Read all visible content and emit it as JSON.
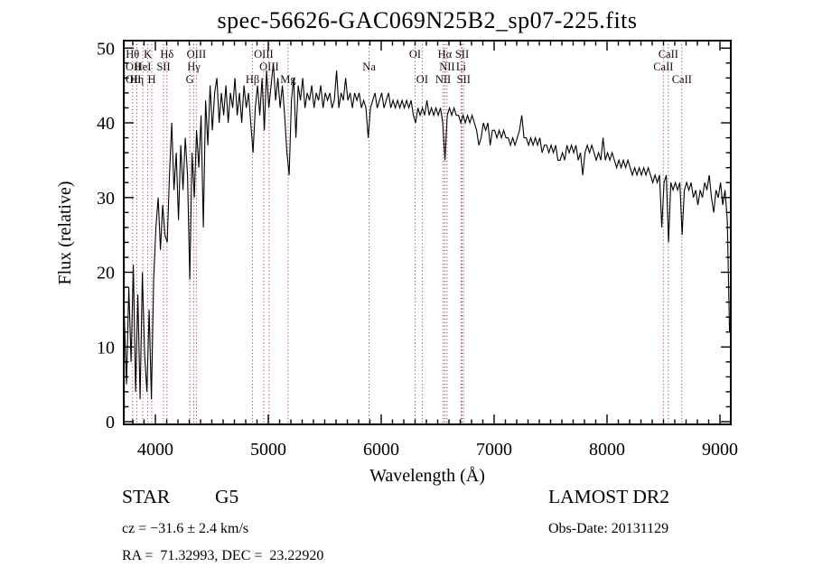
{
  "title": "spec-56626-GAC069N25B2_sp07-225.fits",
  "annotations": {
    "object_type": "STAR",
    "subclass": "G5",
    "cz_line": "cz = −31.6 ± 2.4 km/s",
    "radec_line": "RA =  71.32993, DEC =  23.22920",
    "survey": "LAMOST DR2",
    "obs_date_line": "Obs-Date: 20131129"
  },
  "chart_data": {
    "type": "line",
    "title": "spec-56626-GAC069N25B2_sp07-225.fits",
    "xlabel": "Wavelength (Å)",
    "ylabel": "Flux (relative)",
    "xlim": [
      3720,
      9096
    ],
    "ylim": [
      0,
      50
    ],
    "x_ticks": [
      4000,
      5000,
      6000,
      7000,
      8000,
      9000
    ],
    "y_ticks": [
      0,
      10,
      20,
      30,
      40,
      50
    ],
    "x_minor_step": 100,
    "y_minor_step": 2,
    "grid": false,
    "legend": "none",
    "line_color": "#000000",
    "marker_line_color": "#993333",
    "spectral_lines": [
      {
        "label": "Hθ",
        "wavelength": 3798,
        "row": 1
      },
      {
        "label": "K",
        "wavelength": 3933,
        "row": 1
      },
      {
        "label": "Hδ",
        "wavelength": 4102,
        "row": 1
      },
      {
        "label": "OIII",
        "wavelength": 4363,
        "row": 1
      },
      {
        "label": "OIII",
        "wavelength": 4959,
        "row": 1
      },
      {
        "label": "OI",
        "wavelength": 6300,
        "row": 1
      },
      {
        "label": "Hα",
        "wavelength": 6563,
        "row": 1
      },
      {
        "label": "SII",
        "wavelength": 6716,
        "row": 1
      },
      {
        "label": "CaII",
        "wavelength": 8542,
        "row": 1
      },
      {
        "label": "OII",
        "wavelength": 3727,
        "row": 2
      },
      {
        "label": "HeI",
        "wavelength": 3889,
        "row": 2
      },
      {
        "label": "SII",
        "wavelength": 4072,
        "row": 2
      },
      {
        "label": "Hγ",
        "wavelength": 4340,
        "row": 2
      },
      {
        "label": "OIII",
        "wavelength": 5007,
        "row": 2
      },
      {
        "label": "Na",
        "wavelength": 5893,
        "row": 2
      },
      {
        "label": "NII",
        "wavelength": 6583,
        "row": 2
      },
      {
        "label": "Li",
        "wavelength": 6707,
        "row": 2
      },
      {
        "label": "CaII",
        "wavelength": 8498,
        "row": 2
      },
      {
        "label": "OII",
        "wavelength": 3726,
        "row": 3
      },
      {
        "label": "Hη",
        "wavelength": 3835,
        "row": 3
      },
      {
        "label": "H",
        "wavelength": 3968,
        "row": 3
      },
      {
        "label": "G",
        "wavelength": 4305,
        "row": 3
      },
      {
        "label": "Hβ",
        "wavelength": 4861,
        "row": 3
      },
      {
        "label": "Mg",
        "wavelength": 5175,
        "row": 3
      },
      {
        "label": "OI",
        "wavelength": 6363,
        "row": 3
      },
      {
        "label": "NII",
        "wavelength": 6548,
        "row": 3
      },
      {
        "label": "SII",
        "wavelength": 6730,
        "row": 3
      },
      {
        "label": "CaII",
        "wavelength": 8662,
        "row": 3
      }
    ],
    "spectrum": {
      "lambda_start": 3725,
      "lambda_step": 20,
      "flux": [
        14,
        5,
        18,
        8,
        21,
        4,
        17,
        3,
        20,
        9,
        4,
        15,
        3,
        19,
        26,
        30,
        23,
        29,
        25,
        24,
        33,
        40,
        31,
        36,
        27,
        37,
        31,
        38,
        33,
        19,
        36,
        30,
        39,
        34,
        41,
        26,
        43,
        37,
        45,
        39,
        44,
        46,
        40,
        44,
        41,
        45,
        40,
        44,
        42,
        46,
        41,
        44,
        40,
        45,
        42,
        44,
        40,
        36,
        42,
        45,
        41,
        46,
        39,
        47,
        42,
        45,
        48,
        43,
        46,
        42,
        45,
        41,
        36,
        33,
        43,
        46,
        38,
        45,
        43,
        46,
        42,
        44,
        43,
        45,
        42,
        44,
        43,
        45,
        42,
        44,
        43,
        44,
        42,
        43,
        47,
        42,
        44,
        43,
        46,
        43,
        44,
        42,
        44,
        43,
        44,
        42,
        43,
        42,
        38,
        42,
        43,
        44,
        42,
        43,
        44,
        42,
        43,
        44,
        42,
        43,
        42,
        43,
        42,
        43,
        42,
        43,
        42,
        43,
        41,
        40,
        42,
        41,
        42,
        41,
        43,
        41,
        42,
        41,
        42,
        41,
        42,
        40,
        35,
        41,
        42,
        41,
        42,
        41,
        41,
        40,
        41,
        40,
        41,
        40,
        41,
        40,
        39,
        37,
        38,
        40,
        39,
        40,
        37,
        39,
        39,
        38,
        39,
        38,
        39,
        38,
        38,
        37,
        38,
        37,
        38,
        39,
        41,
        38,
        38,
        37,
        38,
        37,
        38,
        37,
        38,
        36,
        37,
        37,
        36,
        37,
        36,
        37,
        35,
        35,
        36,
        35,
        37,
        36,
        37,
        36,
        37,
        35,
        36,
        33,
        36,
        37,
        36,
        37,
        36,
        35,
        36,
        35,
        38,
        35,
        36,
        35,
        36,
        35,
        34,
        35,
        34,
        35,
        34,
        35,
        34,
        33,
        34,
        33,
        34,
        33,
        34,
        33,
        34,
        33,
        32,
        33,
        32,
        33,
        26,
        32,
        33,
        24,
        32,
        31,
        32,
        31,
        32,
        25,
        31,
        32,
        31,
        32,
        30,
        31,
        29,
        31,
        30,
        32,
        31,
        33,
        30,
        28,
        31,
        30,
        32,
        29,
        31,
        27,
        12
      ]
    }
  }
}
